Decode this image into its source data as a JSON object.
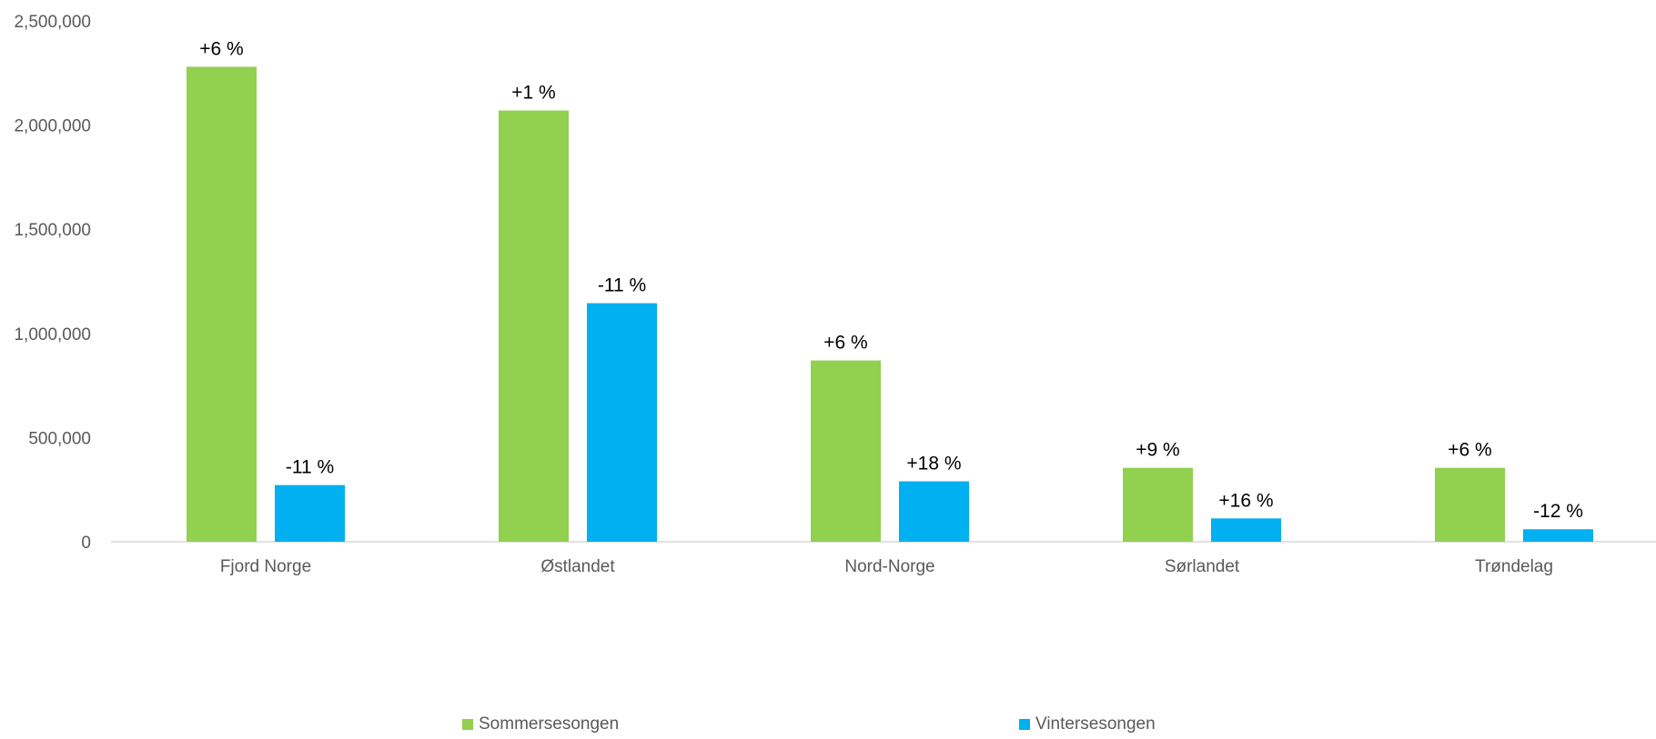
{
  "chart_data": {
    "type": "bar",
    "categories": [
      "Fjord Norge",
      "Østlandet",
      "Nord-Norge",
      "Sørlandet",
      "Trøndelag"
    ],
    "series": [
      {
        "name": "Sommersesongen",
        "color": "#92D050",
        "values": [
          2280000,
          2070000,
          870000,
          355000,
          355000
        ],
        "labels": [
          "+6 %",
          "+1 %",
          "+6 %",
          "+9 %",
          "+6 %"
        ]
      },
      {
        "name": "Vintersesongen",
        "color": "#00B0F0",
        "values": [
          272000,
          1145000,
          290000,
          112000,
          60000
        ],
        "labels": [
          "-11 %",
          "-11 %",
          "+18 %",
          "+16 %",
          "-12 %"
        ]
      }
    ],
    "ylim": [
      0,
      2500000
    ],
    "yticks": [
      "0",
      "500,000",
      "1,000,000",
      "1,500,000",
      "2,000,000",
      "2,500,000"
    ],
    "ytick_values": [
      0,
      500000,
      1000000,
      1500000,
      2000000,
      2500000
    ],
    "grid": false,
    "legend_position": "bottom",
    "title": "",
    "xlabel": "",
    "ylabel": ""
  }
}
